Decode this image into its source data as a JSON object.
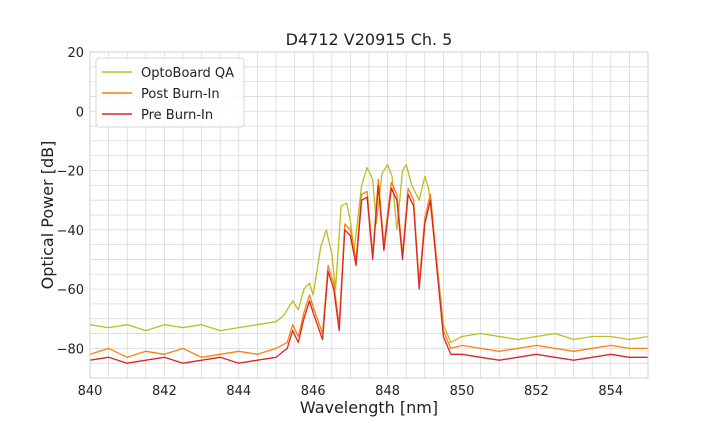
{
  "chart_data": {
    "type": "line",
    "title": "D4712 V20915 Ch. 5",
    "xlabel": "Wavelength [nm]",
    "ylabel": "Optical Power [dB]",
    "xlim": [
      840,
      855
    ],
    "ylim": [
      -90,
      20
    ],
    "x_ticks": [
      840,
      842,
      844,
      846,
      848,
      850,
      852,
      854
    ],
    "x_tick_labels": [
      "840",
      "842",
      "844",
      "846",
      "848",
      "850",
      "852",
      "854"
    ],
    "y_ticks": [
      -80,
      -60,
      -40,
      -20,
      0,
      20
    ],
    "y_tick_labels": [
      "−80",
      "−60",
      "−40",
      "−20",
      "0",
      "20"
    ],
    "grid": true,
    "legend_position": "top-left",
    "series": [
      {
        "name": "OptoBoard QA",
        "color": "#bcbd22",
        "x": [
          840.0,
          840.5,
          841.0,
          841.5,
          842.0,
          842.5,
          843.0,
          843.5,
          844.0,
          844.5,
          845.0,
          845.2,
          845.45,
          845.6,
          845.75,
          845.9,
          846.0,
          846.2,
          846.35,
          846.5,
          846.6,
          846.75,
          846.9,
          847.0,
          847.1,
          847.3,
          847.45,
          847.6,
          847.7,
          847.85,
          848.0,
          848.12,
          848.25,
          848.4,
          848.5,
          848.65,
          848.85,
          849.0,
          849.1,
          849.3,
          849.5,
          849.7,
          850.0,
          850.5,
          851.0,
          851.5,
          852.0,
          852.5,
          853.0,
          853.5,
          854.0,
          854.5,
          855.0
        ],
        "values": [
          -72,
          -73,
          -72,
          -74,
          -72,
          -73,
          -72,
          -74,
          -73,
          -72,
          -71,
          -69,
          -64,
          -67,
          -60,
          -58,
          -62,
          -46,
          -40,
          -48,
          -60,
          -32,
          -31,
          -37,
          -47,
          -25,
          -19,
          -23,
          -38,
          -21,
          -18,
          -22,
          -40,
          -20,
          -18,
          -25,
          -30,
          -22,
          -26,
          -48,
          -72,
          -78,
          -76,
          -75,
          -76,
          -77,
          -76,
          -75,
          -77,
          -76,
          -76,
          -77,
          -76
        ]
      },
      {
        "name": "Post Burn-In",
        "color": "#ff7f0e",
        "x": [
          840.0,
          840.5,
          841.0,
          841.5,
          842.0,
          842.5,
          843.0,
          843.5,
          844.0,
          844.5,
          845.0,
          845.3,
          845.45,
          845.6,
          845.75,
          845.9,
          846.0,
          846.25,
          846.4,
          846.55,
          846.7,
          846.85,
          847.0,
          847.15,
          847.3,
          847.45,
          847.6,
          847.75,
          847.9,
          848.1,
          848.25,
          848.4,
          848.55,
          848.7,
          848.85,
          849.0,
          849.15,
          849.3,
          849.5,
          849.7,
          850.0,
          850.5,
          851.0,
          851.5,
          852.0,
          852.5,
          853.0,
          853.5,
          854.0,
          854.5,
          855.0
        ],
        "values": [
          -82,
          -80,
          -83,
          -81,
          -82,
          -80,
          -83,
          -82,
          -81,
          -82,
          -80,
          -78,
          -72,
          -76,
          -68,
          -62,
          -66,
          -75,
          -52,
          -58,
          -72,
          -38,
          -40,
          -50,
          -28,
          -27,
          -48,
          -23,
          -45,
          -24,
          -28,
          -48,
          -26,
          -30,
          -58,
          -36,
          -28,
          -48,
          -74,
          -80,
          -79,
          -80,
          -81,
          -80,
          -79,
          -80,
          -81,
          -80,
          -79,
          -80,
          -80
        ]
      },
      {
        "name": "Pre Burn-In",
        "color": "#d62728",
        "x": [
          840.0,
          840.5,
          841.0,
          841.5,
          842.0,
          842.5,
          843.0,
          843.5,
          844.0,
          844.5,
          845.0,
          845.3,
          845.45,
          845.6,
          845.75,
          845.9,
          846.0,
          846.25,
          846.4,
          846.55,
          846.7,
          846.85,
          847.0,
          847.15,
          847.3,
          847.45,
          847.6,
          847.75,
          847.9,
          848.1,
          848.25,
          848.4,
          848.55,
          848.7,
          848.85,
          849.0,
          849.15,
          849.3,
          849.5,
          849.7,
          850.0,
          850.5,
          851.0,
          851.5,
          852.0,
          852.5,
          853.0,
          853.5,
          854.0,
          854.5,
          855.0
        ],
        "values": [
          -84,
          -83,
          -85,
          -84,
          -83,
          -85,
          -84,
          -83,
          -85,
          -84,
          -83,
          -80,
          -74,
          -78,
          -70,
          -64,
          -68,
          -77,
          -54,
          -60,
          -74,
          -40,
          -42,
          -52,
          -30,
          -29,
          -50,
          -25,
          -47,
          -26,
          -30,
          -50,
          -28,
          -32,
          -60,
          -38,
          -30,
          -50,
          -76,
          -82,
          -82,
          -83,
          -84,
          -83,
          -82,
          -83,
          -84,
          -83,
          -82,
          -83,
          -83
        ]
      }
    ]
  }
}
